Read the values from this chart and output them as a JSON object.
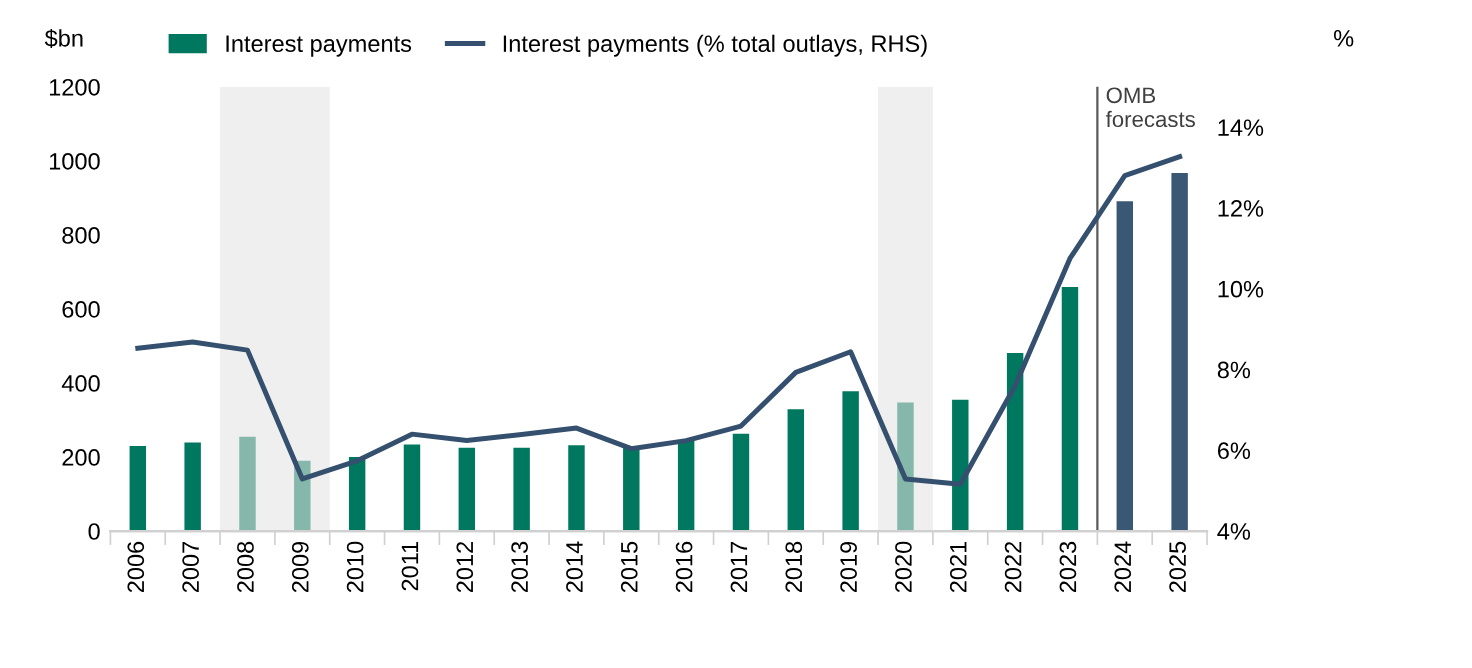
{
  "chart_data": {
    "type": "bar",
    "categories": [
      "2006",
      "2007",
      "2008",
      "2009",
      "2010",
      "2011",
      "2012",
      "2013",
      "2014",
      "2015",
      "2016",
      "2017",
      "2018",
      "2019",
      "2020",
      "2021",
      "2022",
      "2023",
      "2024",
      "2025"
    ],
    "series": [
      {
        "name": "Interest payments",
        "color": "#00785f",
        "colors": [
          "#00785f",
          "#00785f",
          "#85b8aa",
          "#85b8aa",
          "#00785f",
          "#00785f",
          "#00785f",
          "#00785f",
          "#00785f",
          "#00785f",
          "#00785f",
          "#00785f",
          "#00785f",
          "#00785f",
          "#85b8aa",
          "#00785f",
          "#00785f",
          "#00785f",
          "#3a5874",
          "#3a5874"
        ],
        "values": [
          230,
          239,
          255,
          190,
          200,
          234,
          225,
          225,
          232,
          227,
          245,
          263,
          329,
          378,
          347,
          355,
          481,
          659,
          891,
          967
        ]
      },
      {
        "name": "Interest payments (% total outlays, RHS)",
        "type": "line",
        "axis": "y2",
        "color": "#34506e",
        "values": [
          8.53,
          8.68,
          8.48,
          5.29,
          5.74,
          6.4,
          6.24,
          6.39,
          6.55,
          6.04,
          6.24,
          6.6,
          7.93,
          8.44,
          5.29,
          5.16,
          7.6,
          10.75,
          12.8,
          13.27
        ]
      }
    ],
    "ylabel": "$bn",
    "y2label": "%",
    "ylim": [
      0,
      1200
    ],
    "yticks": [
      0,
      200,
      400,
      600,
      800,
      1000,
      1200
    ],
    "y2lim": [
      4,
      15
    ],
    "y2ticks": [
      {
        "value": 4,
        "label": "4%"
      },
      {
        "value": 6,
        "label": "6%"
      },
      {
        "value": 8,
        "label": "8%"
      },
      {
        "value": 10,
        "label": "10%"
      },
      {
        "value": 12,
        "label": "12%"
      },
      {
        "value": 14,
        "label": "14%"
      }
    ],
    "bands": [
      {
        "axis": "x",
        "from": "2008",
        "to": "2009",
        "color": "#efefef"
      },
      {
        "axis": "x",
        "from": "2020",
        "to": "2020",
        "color": "#efefef"
      }
    ],
    "annotations": [
      "OMB\nforecasts"
    ],
    "legend": "top",
    "grid": false,
    "marker": "none",
    "line_style": "solid"
  }
}
